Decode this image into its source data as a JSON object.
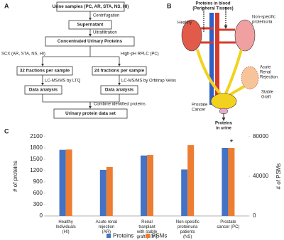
{
  "panel_labels": [
    "A",
    "B",
    "C"
  ],
  "flowchart": {
    "nodes": [
      "Urine samples (PC, AR, STA, NS, HI)",
      "Supernatant",
      "Concentrated Urinary Proteins",
      "32 fractions per sample",
      "24 fractions per sample",
      "Data analysis",
      "Data analysis",
      "Urinary protein data set"
    ],
    "edges": [
      "Centrifugation",
      "Ultrafiltration",
      "SCX (AR, STA, NS, HI)",
      "High-pH RPLC (PC)",
      "LC-MS/MS by LTQ",
      "LC-MS/MS by Orbitrap Velos",
      "Combine identified proteins"
    ]
  },
  "diagram": {
    "labels": [
      "Proteins in blood",
      "(Peripheral Tissues)",
      "Healthy",
      "Non-specific",
      "proteinuria",
      "Acute",
      "Renal",
      "Rejection",
      "Stable",
      "Graft",
      "Prostate",
      "Cancer",
      "Proteins",
      "in urine"
    ]
  },
  "chart_data": {
    "type": "bar",
    "categories": [
      "Healthy\nIndividuals\n(HI)",
      "Acute renal\nrejection\n(AR)",
      "Renal\ntranplant\nwith stable\ngraft (STA)",
      "Non-specific\nproteinuria\npatients\n(NS)",
      "Prostate\ncancer (PC)"
    ],
    "series": [
      {
        "name": "Proteins",
        "color": "#4472c4",
        "values": [
          1750,
          1220,
          1600,
          1230,
          1800
        ]
      },
      {
        "name": "PSMs",
        "color": "#ed7d31",
        "axis": "y2",
        "values": [
          67000,
          49300,
          61400,
          71400,
          68600
        ]
      }
    ],
    "ylabel": "# of proteins",
    "y2label": "# of PSMs",
    "ylim": [
      0,
      2100
    ],
    "yticks": [
      0,
      300,
      600,
      900,
      1200,
      1500,
      1800,
      2100
    ],
    "y2lim": [
      0,
      80000
    ],
    "y2ticks": [
      0,
      40000,
      80000
    ],
    "annotation": "*"
  }
}
